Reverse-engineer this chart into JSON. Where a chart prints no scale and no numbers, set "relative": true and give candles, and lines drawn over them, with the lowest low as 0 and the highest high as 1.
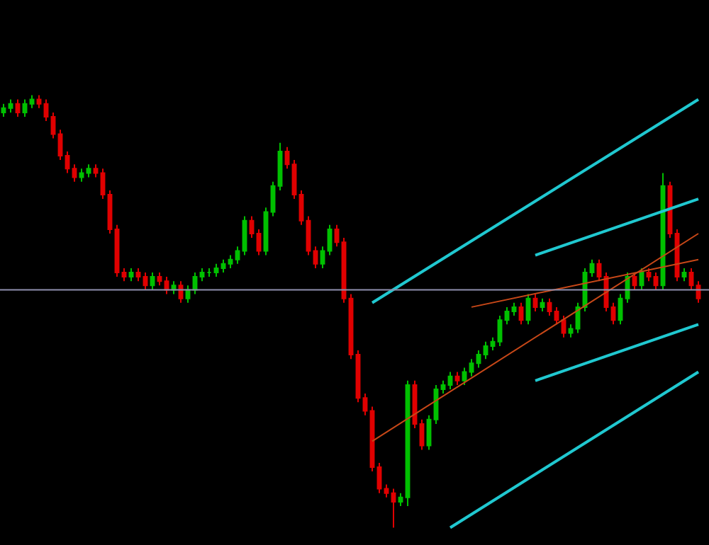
{
  "chart_data": {
    "type": "candlestick",
    "relative": true,
    "grid": false,
    "categories": [
      null,
      null,
      null,
      null,
      null,
      null,
      null,
      null,
      null,
      null,
      null,
      null,
      null,
      null,
      null,
      null,
      null,
      null,
      null,
      null,
      null,
      null,
      null,
      null,
      null,
      null,
      null,
      null,
      null,
      null,
      null,
      null,
      null,
      null,
      null,
      null,
      null,
      null,
      null,
      null,
      null,
      null,
      null,
      null,
      null,
      null,
      null,
      null,
      null,
      null,
      null,
      null,
      null,
      null,
      null,
      null,
      null,
      null,
      null,
      null,
      null,
      null,
      null,
      null,
      null,
      null,
      null,
      null,
      null,
      null,
      null,
      null,
      null,
      null,
      null,
      null,
      null,
      null,
      null,
      null,
      null,
      null,
      null,
      null,
      null,
      null,
      null,
      null,
      null,
      null,
      null,
      null,
      null,
      null,
      null,
      null,
      null,
      null,
      null
    ],
    "ohlc": [
      [
        0.96,
        0.98,
        0.95,
        0.97
      ],
      [
        0.97,
        0.99,
        0.96,
        0.98
      ],
      [
        0.98,
        0.99,
        0.95,
        0.96
      ],
      [
        0.96,
        0.99,
        0.95,
        0.98
      ],
      [
        0.98,
        1.0,
        0.97,
        0.99
      ],
      [
        0.99,
        1.0,
        0.97,
        0.98
      ],
      [
        0.98,
        0.99,
        0.94,
        0.95
      ],
      [
        0.95,
        0.96,
        0.9,
        0.91
      ],
      [
        0.91,
        0.92,
        0.85,
        0.86
      ],
      [
        0.86,
        0.87,
        0.82,
        0.83
      ],
      [
        0.83,
        0.84,
        0.8,
        0.81
      ],
      [
        0.81,
        0.83,
        0.8,
        0.82
      ],
      [
        0.82,
        0.84,
        0.81,
        0.83
      ],
      [
        0.83,
        0.84,
        0.81,
        0.82
      ],
      [
        0.82,
        0.83,
        0.76,
        0.77
      ],
      [
        0.77,
        0.78,
        0.68,
        0.69
      ],
      [
        0.69,
        0.7,
        0.58,
        0.59
      ],
      [
        0.59,
        0.6,
        0.57,
        0.58
      ],
      [
        0.58,
        0.6,
        0.57,
        0.59
      ],
      [
        0.59,
        0.6,
        0.57,
        0.58
      ],
      [
        0.58,
        0.59,
        0.55,
        0.56
      ],
      [
        0.56,
        0.59,
        0.55,
        0.58
      ],
      [
        0.58,
        0.59,
        0.56,
        0.57
      ],
      [
        0.57,
        0.58,
        0.54,
        0.55
      ],
      [
        0.55,
        0.57,
        0.54,
        0.56
      ],
      [
        0.56,
        0.57,
        0.52,
        0.53
      ],
      [
        0.53,
        0.56,
        0.52,
        0.55
      ],
      [
        0.55,
        0.59,
        0.54,
        0.58
      ],
      [
        0.58,
        0.6,
        0.57,
        0.59
      ],
      [
        0.59,
        0.6,
        0.58,
        0.59
      ],
      [
        0.59,
        0.61,
        0.58,
        0.6
      ],
      [
        0.6,
        0.62,
        0.59,
        0.61
      ],
      [
        0.61,
        0.63,
        0.6,
        0.62
      ],
      [
        0.62,
        0.65,
        0.61,
        0.64
      ],
      [
        0.64,
        0.72,
        0.63,
        0.71
      ],
      [
        0.71,
        0.72,
        0.67,
        0.68
      ],
      [
        0.68,
        0.69,
        0.63,
        0.64
      ],
      [
        0.64,
        0.74,
        0.63,
        0.73
      ],
      [
        0.73,
        0.8,
        0.72,
        0.79
      ],
      [
        0.79,
        0.89,
        0.78,
        0.87
      ],
      [
        0.87,
        0.88,
        0.83,
        0.84
      ],
      [
        0.84,
        0.85,
        0.76,
        0.77
      ],
      [
        0.77,
        0.78,
        0.7,
        0.71
      ],
      [
        0.71,
        0.72,
        0.63,
        0.64
      ],
      [
        0.64,
        0.65,
        0.6,
        0.61
      ],
      [
        0.61,
        0.65,
        0.6,
        0.64
      ],
      [
        0.64,
        0.7,
        0.63,
        0.69
      ],
      [
        0.69,
        0.7,
        0.65,
        0.66
      ],
      [
        0.66,
        0.67,
        0.52,
        0.53
      ],
      [
        0.53,
        0.54,
        0.39,
        0.4
      ],
      [
        0.4,
        0.41,
        0.29,
        0.3
      ],
      [
        0.3,
        0.31,
        0.26,
        0.27
      ],
      [
        0.27,
        0.28,
        0.13,
        0.14
      ],
      [
        0.14,
        0.15,
        0.08,
        0.09
      ],
      [
        0.09,
        0.1,
        0.07,
        0.08
      ],
      [
        0.08,
        0.09,
        0.0,
        0.06
      ],
      [
        0.06,
        0.08,
        0.05,
        0.07
      ],
      [
        0.07,
        0.34,
        0.05,
        0.33
      ],
      [
        0.33,
        0.34,
        0.23,
        0.24
      ],
      [
        0.24,
        0.25,
        0.18,
        0.19
      ],
      [
        0.19,
        0.26,
        0.18,
        0.25
      ],
      [
        0.25,
        0.33,
        0.24,
        0.32
      ],
      [
        0.32,
        0.34,
        0.31,
        0.33
      ],
      [
        0.33,
        0.36,
        0.32,
        0.35
      ],
      [
        0.35,
        0.36,
        0.33,
        0.34
      ],
      [
        0.34,
        0.37,
        0.33,
        0.36
      ],
      [
        0.36,
        0.39,
        0.35,
        0.38
      ],
      [
        0.38,
        0.41,
        0.37,
        0.4
      ],
      [
        0.4,
        0.43,
        0.39,
        0.42
      ],
      [
        0.42,
        0.44,
        0.41,
        0.43
      ],
      [
        0.43,
        0.49,
        0.42,
        0.48
      ],
      [
        0.48,
        0.51,
        0.47,
        0.5
      ],
      [
        0.5,
        0.52,
        0.49,
        0.51
      ],
      [
        0.51,
        0.52,
        0.47,
        0.48
      ],
      [
        0.48,
        0.54,
        0.47,
        0.53
      ],
      [
        0.53,
        0.54,
        0.5,
        0.51
      ],
      [
        0.51,
        0.53,
        0.5,
        0.52
      ],
      [
        0.52,
        0.53,
        0.49,
        0.5
      ],
      [
        0.5,
        0.51,
        0.47,
        0.48
      ],
      [
        0.48,
        0.49,
        0.44,
        0.45
      ],
      [
        0.45,
        0.47,
        0.44,
        0.46
      ],
      [
        0.46,
        0.52,
        0.45,
        0.51
      ],
      [
        0.51,
        0.6,
        0.5,
        0.59
      ],
      [
        0.59,
        0.62,
        0.58,
        0.61
      ],
      [
        0.61,
        0.62,
        0.57,
        0.58
      ],
      [
        0.58,
        0.59,
        0.5,
        0.51
      ],
      [
        0.51,
        0.52,
        0.47,
        0.48
      ],
      [
        0.48,
        0.54,
        0.47,
        0.53
      ],
      [
        0.53,
        0.59,
        0.52,
        0.58
      ],
      [
        0.58,
        0.59,
        0.55,
        0.56
      ],
      [
        0.56,
        0.6,
        0.55,
        0.59
      ],
      [
        0.59,
        0.6,
        0.57,
        0.58
      ],
      [
        0.58,
        0.59,
        0.55,
        0.56
      ],
      [
        0.56,
        0.82,
        0.55,
        0.79
      ],
      [
        0.79,
        0.8,
        0.67,
        0.68
      ],
      [
        0.68,
        0.69,
        0.57,
        0.58
      ],
      [
        0.58,
        0.6,
        0.57,
        0.59
      ],
      [
        0.59,
        0.6,
        0.55,
        0.56
      ],
      [
        0.56,
        0.57,
        0.52,
        0.53
      ]
    ],
    "colors": [
      "#00c000",
      "#00c000",
      "#e00000",
      "#00c000",
      "#00c000",
      "#e00000",
      "#e00000",
      "#e00000",
      "#e00000",
      "#e00000",
      "#e00000",
      "#00c000",
      "#00c000",
      "#e00000",
      "#e00000",
      "#e00000",
      "#e00000",
      "#e00000",
      "#00c000",
      "#e00000",
      "#e00000",
      "#00c000",
      "#e00000",
      "#e00000",
      "#00c000",
      "#e00000",
      "#00c000",
      "#00c000",
      "#00c000",
      "#00c000",
      "#00c000",
      "#00c000",
      "#00c000",
      "#00c000",
      "#00c000",
      "#e00000",
      "#e00000",
      "#00c000",
      "#00c000",
      "#00c000",
      "#e00000",
      "#e00000",
      "#e00000",
      "#e00000",
      "#e00000",
      "#00c000",
      "#00c000",
      "#e00000",
      "#e00000",
      "#e00000",
      "#e00000",
      "#e00000",
      "#e00000",
      "#e00000",
      "#e00000",
      "#e00000",
      "#00c000",
      "#00c000",
      "#e00000",
      "#e00000",
      "#00c000",
      "#00c000",
      "#00c000",
      "#00c000",
      "#e00000",
      "#00c000",
      "#00c000",
      "#00c000",
      "#00c000",
      "#00c000",
      "#00c000",
      "#00c000",
      "#00c000",
      "#e00000",
      "#00c000",
      "#e00000",
      "#00c000",
      "#e00000",
      "#e00000",
      "#e00000",
      "#00c000",
      "#00c000",
      "#00c000",
      "#00c000",
      "#e00000",
      "#e00000",
      "#e00000",
      "#00c000",
      "#00c000",
      "#e00000",
      "#00c000",
      "#e00000",
      "#e00000",
      "#00c000",
      "#e00000",
      "#e00000",
      "#00c000",
      "#e00000",
      "#e00000"
    ],
    "series": [
      {
        "type": "line",
        "color": "#20c8d0",
        "values": [
          null,
          null,
          null,
          null,
          null,
          null,
          null,
          null,
          null,
          null,
          null,
          null,
          null,
          null,
          null,
          null,
          null,
          null,
          null,
          null,
          null,
          null,
          null,
          null,
          null,
          null,
          null,
          null,
          null,
          null,
          null,
          null,
          null,
          null,
          null,
          null,
          null,
          null,
          null,
          null,
          null,
          null,
          null,
          null,
          null,
          null,
          null,
          null,
          null,
          null,
          null,
          null,
          0.52,
          null,
          null,
          null,
          null,
          null,
          null,
          null,
          null,
          null,
          null,
          null,
          null,
          null,
          null,
          null,
          null,
          null,
          null,
          null,
          null,
          null,
          null,
          null,
          null,
          null,
          null,
          null,
          null,
          null,
          null,
          null,
          null,
          null,
          null,
          null,
          null,
          null,
          null,
          null,
          null,
          null,
          null,
          null,
          null,
          null,
          0.99
        ]
      },
      {
        "type": "line",
        "color": "#20c8d0",
        "values": [
          null,
          null,
          null,
          null,
          null,
          null,
          null,
          null,
          null,
          null,
          null,
          null,
          null,
          null,
          null,
          null,
          null,
          null,
          null,
          null,
          null,
          null,
          null,
          null,
          null,
          null,
          null,
          null,
          null,
          null,
          null,
          null,
          null,
          null,
          null,
          null,
          null,
          null,
          null,
          null,
          null,
          null,
          null,
          null,
          null,
          null,
          null,
          null,
          null,
          null,
          null,
          null,
          null,
          null,
          null,
          null,
          null,
          null,
          null,
          null,
          null,
          null,
          null,
          null,
          null,
          null,
          null,
          null,
          null,
          null,
          null,
          null,
          null,
          null,
          null,
          0.63,
          null,
          null,
          null,
          null,
          null,
          null,
          null,
          null,
          null,
          null,
          null,
          null,
          null,
          null,
          null,
          null,
          null,
          null,
          null,
          null,
          null,
          null,
          0.76
        ]
      },
      {
        "type": "line",
        "color": "#20c8d0",
        "values": [
          null,
          null,
          null,
          null,
          null,
          null,
          null,
          null,
          null,
          null,
          null,
          null,
          null,
          null,
          null,
          null,
          null,
          null,
          null,
          null,
          null,
          null,
          null,
          null,
          null,
          null,
          null,
          null,
          null,
          null,
          null,
          null,
          null,
          null,
          null,
          null,
          null,
          null,
          null,
          null,
          null,
          null,
          null,
          null,
          null,
          null,
          null,
          null,
          null,
          null,
          null,
          null,
          null,
          null,
          null,
          null,
          null,
          null,
          null,
          null,
          null,
          null,
          null,
          null,
          null,
          null,
          null,
          null,
          null,
          null,
          null,
          null,
          null,
          null,
          null,
          0.34,
          null,
          null,
          null,
          null,
          null,
          null,
          null,
          null,
          null,
          null,
          null,
          null,
          null,
          null,
          null,
          null,
          null,
          null,
          null,
          null,
          null,
          null,
          0.47
        ]
      },
      {
        "type": "line",
        "color": "#20c8d0",
        "values": [
          null,
          null,
          null,
          null,
          null,
          null,
          null,
          null,
          null,
          null,
          null,
          null,
          null,
          null,
          null,
          null,
          null,
          null,
          null,
          null,
          null,
          null,
          null,
          null,
          null,
          null,
          null,
          null,
          null,
          null,
          null,
          null,
          null,
          null,
          null,
          null,
          null,
          null,
          null,
          null,
          null,
          null,
          null,
          null,
          null,
          null,
          null,
          null,
          null,
          null,
          null,
          null,
          null,
          null,
          null,
          null,
          null,
          null,
          null,
          null,
          null,
          null,
          null,
          0.0,
          null,
          null,
          null,
          null,
          null,
          null,
          null,
          null,
          null,
          null,
          null,
          null,
          null,
          null,
          null,
          null,
          null,
          null,
          null,
          null,
          null,
          null,
          null,
          null,
          null,
          null,
          null,
          null,
          null,
          null,
          null,
          null,
          null,
          null,
          0.36
        ]
      },
      {
        "type": "line",
        "color": "#c84818",
        "values": [
          null,
          null,
          null,
          null,
          null,
          null,
          null,
          null,
          null,
          null,
          null,
          null,
          null,
          null,
          null,
          null,
          null,
          null,
          null,
          null,
          null,
          null,
          null,
          null,
          null,
          null,
          null,
          null,
          null,
          null,
          null,
          null,
          null,
          null,
          null,
          null,
          null,
          null,
          null,
          null,
          null,
          null,
          null,
          null,
          null,
          null,
          null,
          null,
          null,
          null,
          null,
          null,
          0.2,
          null,
          null,
          null,
          null,
          null,
          null,
          null,
          null,
          null,
          null,
          null,
          null,
          null,
          null,
          null,
          null,
          null,
          null,
          null,
          null,
          null,
          null,
          null,
          null,
          null,
          null,
          null,
          null,
          null,
          null,
          null,
          null,
          null,
          null,
          null,
          null,
          null,
          null,
          null,
          null,
          null,
          null,
          null,
          null,
          null,
          0.68
        ]
      },
      {
        "type": "line",
        "color": "#c84818",
        "values": [
          null,
          null,
          null,
          null,
          null,
          null,
          null,
          null,
          null,
          null,
          null,
          null,
          null,
          null,
          null,
          null,
          null,
          null,
          null,
          null,
          null,
          null,
          null,
          null,
          null,
          null,
          null,
          null,
          null,
          null,
          null,
          null,
          null,
          null,
          null,
          null,
          null,
          null,
          null,
          null,
          null,
          null,
          null,
          null,
          null,
          null,
          null,
          null,
          null,
          null,
          null,
          null,
          null,
          null,
          null,
          null,
          null,
          null,
          null,
          null,
          null,
          null,
          null,
          null,
          null,
          null,
          0.51,
          null,
          null,
          null,
          null,
          null,
          null,
          null,
          null,
          null,
          null,
          null,
          null,
          null,
          null,
          null,
          null,
          null,
          null,
          null,
          null,
          null,
          null,
          null,
          null,
          null,
          null,
          null,
          null,
          null,
          null,
          null,
          0.62
        ]
      }
    ],
    "ref_lines": [
      {
        "axis": "y",
        "value": 0.55,
        "color": "#9090b0"
      }
    ]
  }
}
